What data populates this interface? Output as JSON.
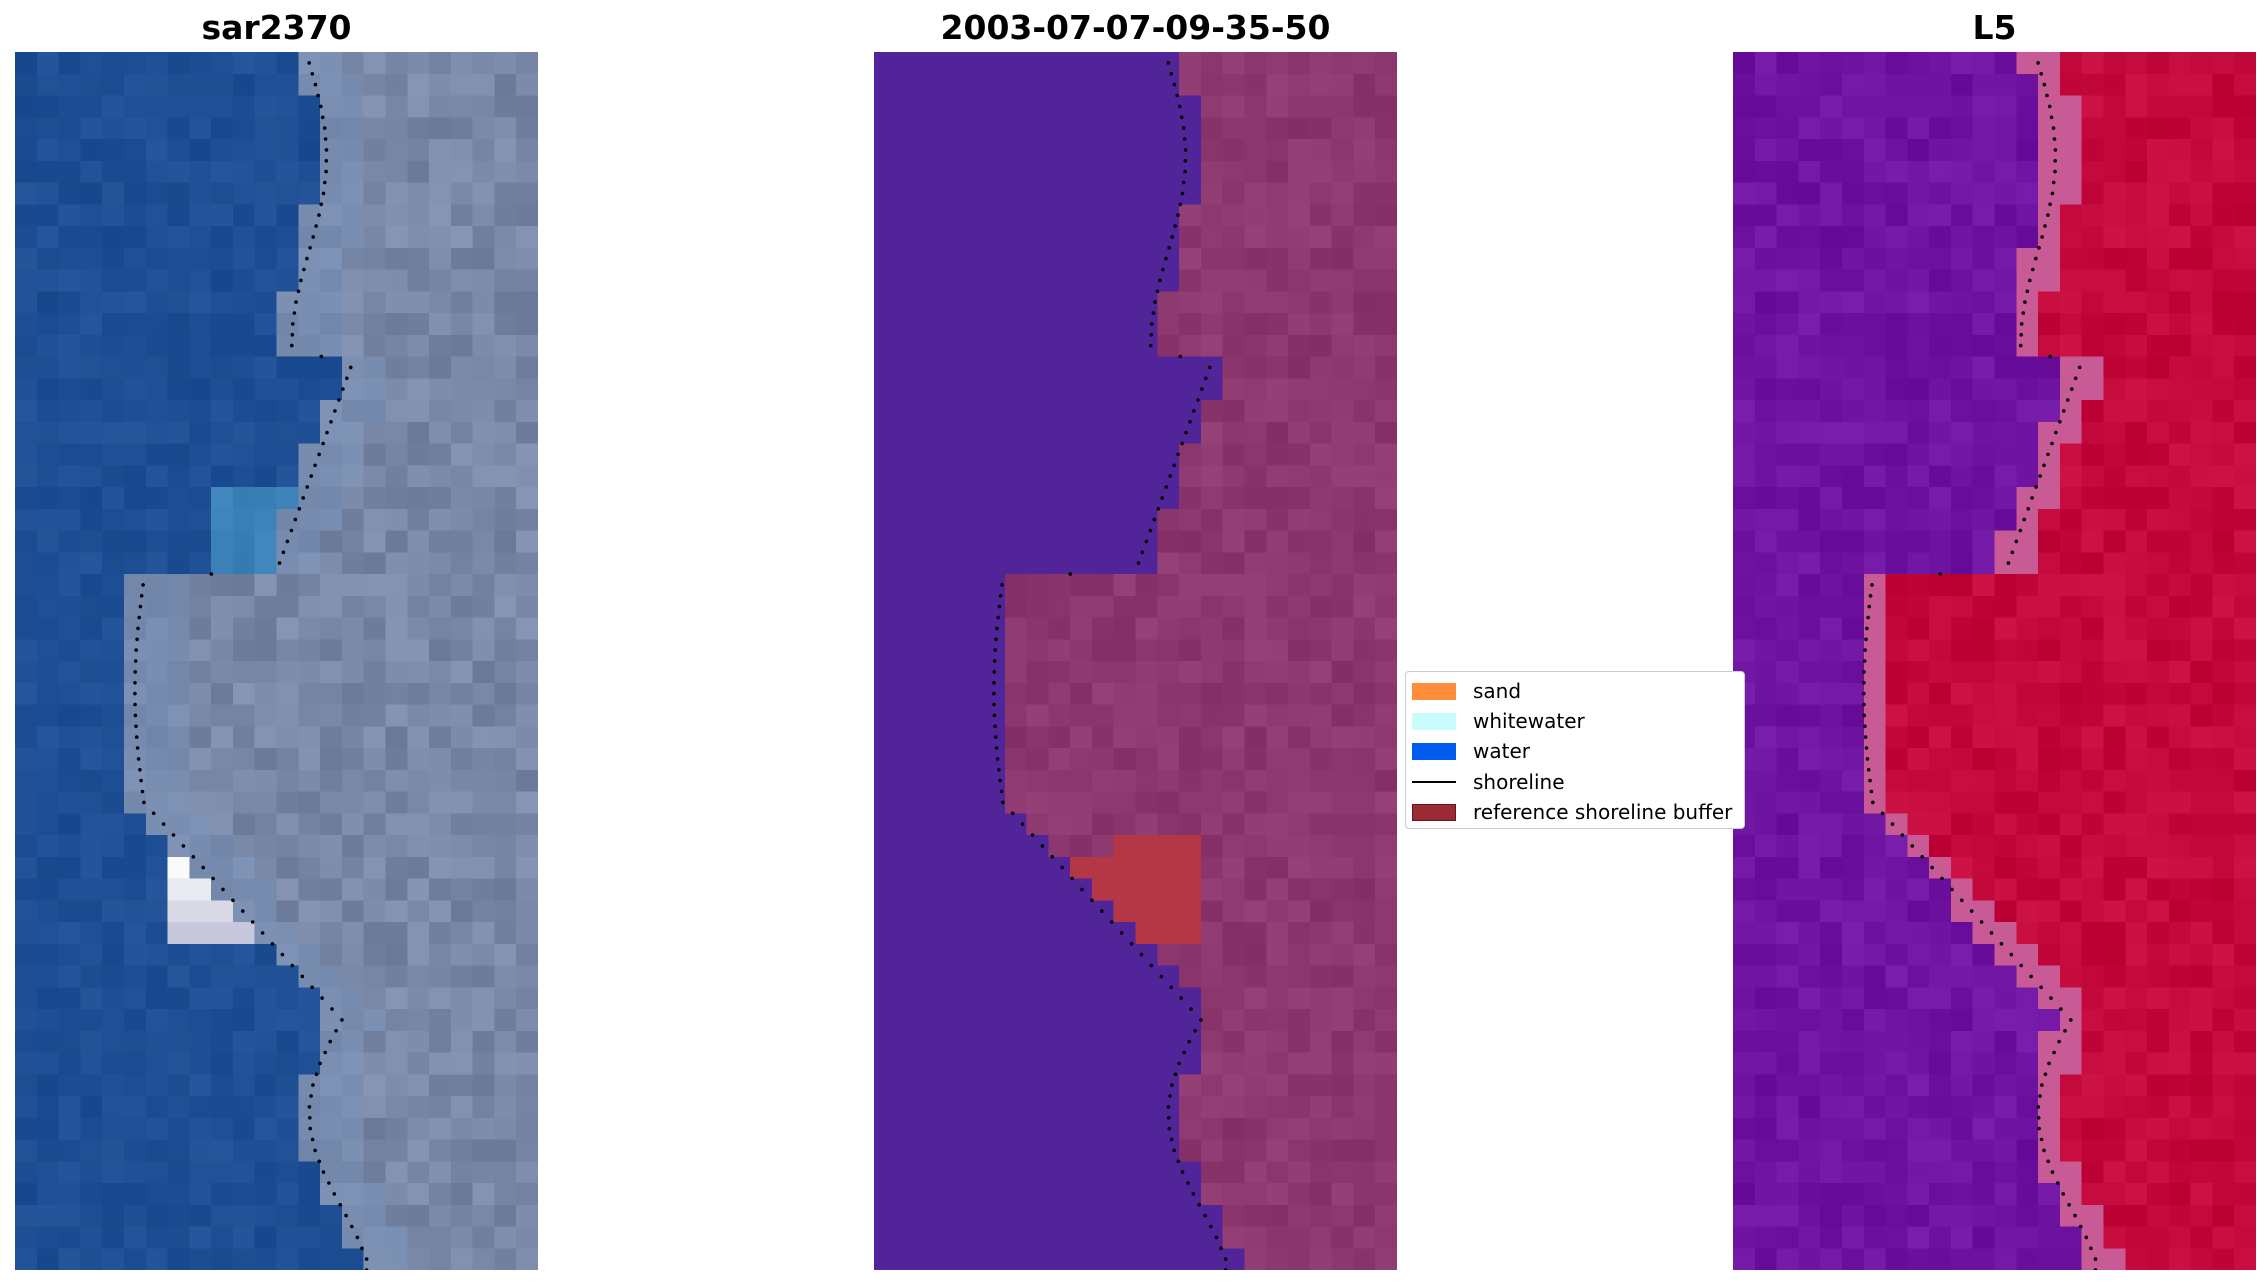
{
  "panels": [
    {
      "title": "sar2370"
    },
    {
      "title": "2003-07-07-09-35-50"
    },
    {
      "title": "L5"
    }
  ],
  "legend": {
    "items": [
      {
        "label": "sand",
        "color": "#ff8c3a"
      },
      {
        "label": "whitewater",
        "color": "#c8fdfc"
      },
      {
        "label": "water",
        "color": "#005bef"
      },
      {
        "label": "shoreline",
        "color": "#000000"
      },
      {
        "label": "reference shoreline buffer",
        "color": "#9c2a35"
      }
    ]
  },
  "colors": {
    "ocean_rgb": "#1e4f94",
    "classified_water": "#52249a",
    "index_low": "#5a0aa0",
    "index_high": "#c3093b"
  }
}
